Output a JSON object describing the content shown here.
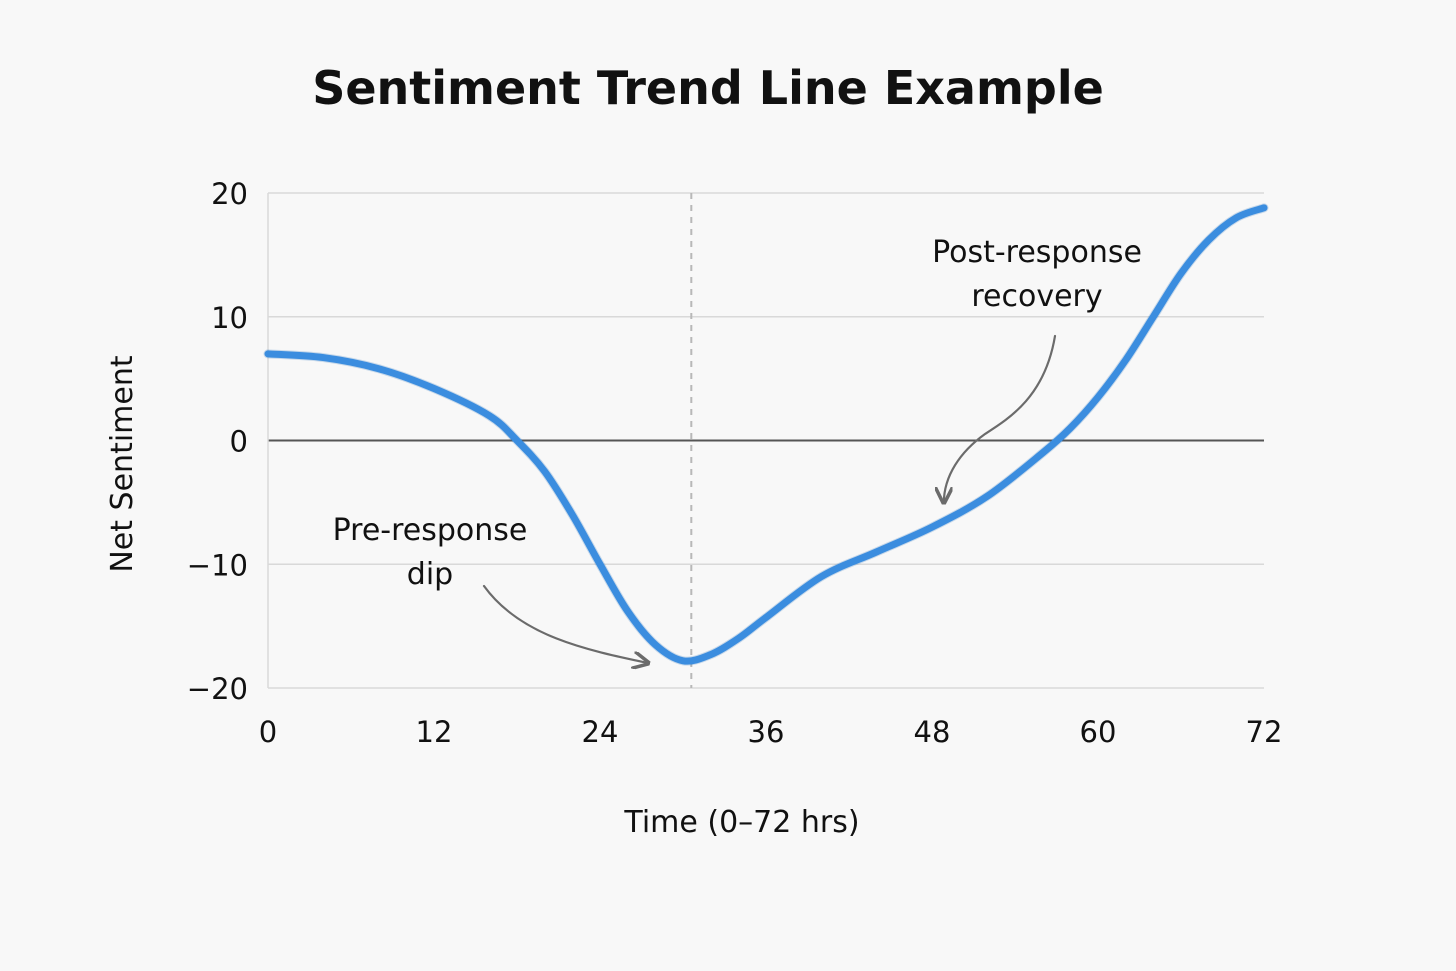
{
  "chart_data": {
    "type": "line",
    "title": "Sentiment Trend Line Example",
    "xlabel": "Time (0–72 hrs)",
    "ylabel": "Net Sentiment",
    "xlim": [
      0,
      72
    ],
    "ylim": [
      -20,
      20
    ],
    "x_ticks": [
      0,
      12,
      24,
      36,
      48,
      60,
      72
    ],
    "y_ticks": [
      20,
      10,
      0,
      -10,
      -20
    ],
    "y_tick_labels": [
      "20",
      "10",
      "0",
      "−10",
      "−20"
    ],
    "grid": true,
    "zero_line": true,
    "vertical_marker_x": 30.6,
    "series": [
      {
        "color": "#3b8ddf",
        "x": [
          0,
          4,
          8,
          12,
          16,
          18,
          20,
          22,
          24,
          26,
          28,
          30,
          32,
          34,
          36,
          40,
          44,
          48,
          52,
          56,
          58,
          60,
          62,
          64,
          66,
          68,
          70,
          72
        ],
        "y": [
          7.0,
          6.7,
          5.8,
          4.2,
          2.0,
          0.0,
          -2.5,
          -6.0,
          -10.0,
          -13.8,
          -16.5,
          -17.8,
          -17.3,
          -16.0,
          -14.3,
          -11.0,
          -9.0,
          -7.0,
          -4.5,
          -1.0,
          1.0,
          3.5,
          6.5,
          10.0,
          13.5,
          16.2,
          18.0,
          18.8
        ]
      }
    ],
    "annotations": [
      {
        "label": "Pre-response dip",
        "lines": [
          "Pre-response",
          "dip"
        ],
        "points_to": [
          28,
          -17.5
        ]
      },
      {
        "label": "Post-response recovery",
        "lines": [
          "Post-response",
          "recovery"
        ],
        "points_to": [
          49,
          -4.7
        ]
      }
    ]
  }
}
